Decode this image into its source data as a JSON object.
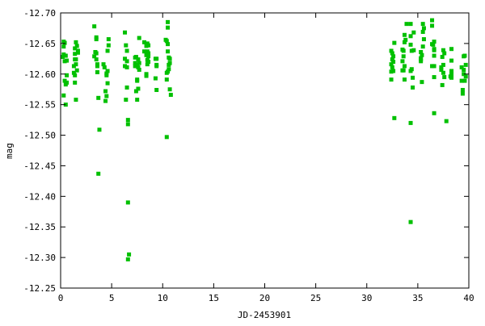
{
  "chart_data": {
    "type": "scatter",
    "title": "",
    "xlabel": "JD-2453901",
    "ylabel": "mag",
    "xlim": [
      0,
      40
    ],
    "ylim": [
      -12.7,
      -12.25
    ],
    "y_inverted_top_value": -12.7,
    "x_ticks": [
      "0",
      "5",
      "10",
      "15",
      "20",
      "25",
      "30",
      "35",
      "40"
    ],
    "y_ticks": [
      "-12.70",
      "-12.65",
      "-12.60",
      "-12.55",
      "-12.50",
      "-12.45",
      "-12.40",
      "-12.35",
      "-12.30",
      "-12.25"
    ],
    "grid": false,
    "legend": "none",
    "marker": "square",
    "color": "#00c000",
    "series": [
      {
        "points": [
          [
            0.3,
            -12.653
          ],
          [
            0.4,
            -12.651
          ],
          [
            0.3,
            -12.645
          ],
          [
            0.3,
            -12.632
          ],
          [
            0.5,
            -12.63
          ],
          [
            0.2,
            -12.628
          ],
          [
            0.6,
            -12.622
          ],
          [
            0.4,
            -12.621
          ],
          [
            0.6,
            -12.598
          ],
          [
            0.4,
            -12.589
          ],
          [
            0.6,
            -12.586
          ],
          [
            0.5,
            -12.583
          ],
          [
            0.3,
            -12.565
          ],
          [
            0.5,
            -12.55
          ],
          [
            1.5,
            -12.652
          ],
          [
            1.6,
            -12.646
          ],
          [
            1.4,
            -12.642
          ],
          [
            1.7,
            -12.638
          ],
          [
            1.7,
            -12.635
          ],
          [
            1.4,
            -12.633
          ],
          [
            1.5,
            -12.624
          ],
          [
            1.4,
            -12.624
          ],
          [
            1.5,
            -12.616
          ],
          [
            1.3,
            -12.613
          ],
          [
            1.6,
            -12.606
          ],
          [
            1.3,
            -12.602
          ],
          [
            1.4,
            -12.598
          ],
          [
            1.4,
            -12.586
          ],
          [
            1.5,
            -12.558
          ],
          [
            3.3,
            -12.678
          ],
          [
            3.5,
            -12.66
          ],
          [
            3.5,
            -12.657
          ],
          [
            3.4,
            -12.636
          ],
          [
            3.5,
            -12.634
          ],
          [
            3.3,
            -12.629
          ],
          [
            3.5,
            -12.624
          ],
          [
            3.6,
            -12.616
          ],
          [
            3.6,
            -12.613
          ],
          [
            3.6,
            -12.603
          ],
          [
            3.7,
            -12.561
          ],
          [
            3.8,
            -12.509
          ],
          [
            3.7,
            -12.437
          ],
          [
            4.7,
            -12.657
          ],
          [
            4.7,
            -12.647
          ],
          [
            4.6,
            -12.638
          ],
          [
            4.2,
            -12.616
          ],
          [
            4.3,
            -12.611
          ],
          [
            4.6,
            -12.605
          ],
          [
            4.5,
            -12.601
          ],
          [
            4.5,
            -12.598
          ],
          [
            4.6,
            -12.585
          ],
          [
            4.4,
            -12.572
          ],
          [
            4.5,
            -12.564
          ],
          [
            4.4,
            -12.556
          ],
          [
            6.3,
            -12.668
          ],
          [
            6.4,
            -12.647
          ],
          [
            6.5,
            -12.638
          ],
          [
            6.3,
            -12.625
          ],
          [
            6.5,
            -12.621
          ],
          [
            6.3,
            -12.613
          ],
          [
            6.5,
            -12.611
          ],
          [
            6.5,
            -12.578
          ],
          [
            6.4,
            -12.558
          ],
          [
            6.6,
            -12.525
          ],
          [
            6.6,
            -12.518
          ],
          [
            6.6,
            -12.39
          ],
          [
            6.7,
            -12.305
          ],
          [
            6.6,
            -12.297
          ],
          [
            7.7,
            -12.659
          ],
          [
            7.3,
            -12.627
          ],
          [
            7.4,
            -12.628
          ],
          [
            7.6,
            -12.624
          ],
          [
            7.3,
            -12.618
          ],
          [
            7.7,
            -12.618
          ],
          [
            7.5,
            -12.615
          ],
          [
            7.3,
            -12.613
          ],
          [
            7.6,
            -12.611
          ],
          [
            7.7,
            -12.607
          ],
          [
            7.5,
            -12.591
          ],
          [
            7.5,
            -12.589
          ],
          [
            7.6,
            -12.576
          ],
          [
            7.4,
            -12.572
          ],
          [
            7.5,
            -12.558
          ],
          [
            8.2,
            -12.652
          ],
          [
            8.5,
            -12.65
          ],
          [
            8.4,
            -12.646
          ],
          [
            8.6,
            -12.647
          ],
          [
            8.2,
            -12.637
          ],
          [
            8.5,
            -12.637
          ],
          [
            8.4,
            -12.631
          ],
          [
            8.6,
            -12.629
          ],
          [
            8.5,
            -12.623
          ],
          [
            8.6,
            -12.62
          ],
          [
            8.5,
            -12.616
          ],
          [
            8.4,
            -12.6
          ],
          [
            8.4,
            -12.597
          ],
          [
            8.6,
            -12.634
          ],
          [
            9.3,
            -12.625
          ],
          [
            9.4,
            -12.625
          ],
          [
            9.4,
            -12.615
          ],
          [
            9.4,
            -12.613
          ],
          [
            9.3,
            -12.593
          ],
          [
            9.4,
            -12.574
          ],
          [
            10.5,
            -12.685
          ],
          [
            10.5,
            -12.676
          ],
          [
            10.3,
            -12.656
          ],
          [
            10.4,
            -12.654
          ],
          [
            10.5,
            -12.649
          ],
          [
            10.5,
            -12.637
          ],
          [
            10.6,
            -12.627
          ],
          [
            10.7,
            -12.625
          ],
          [
            10.6,
            -12.615
          ],
          [
            10.7,
            -12.618
          ],
          [
            10.6,
            -12.608
          ],
          [
            10.4,
            -12.602
          ],
          [
            10.5,
            -12.604
          ],
          [
            10.4,
            -12.591
          ],
          [
            10.7,
            -12.575
          ],
          [
            10.8,
            -12.566
          ],
          [
            10.4,
            -12.497
          ],
          [
            32.4,
            -12.591
          ],
          [
            32.4,
            -12.638
          ],
          [
            32.5,
            -12.634
          ],
          [
            32.6,
            -12.629
          ],
          [
            32.5,
            -12.624
          ],
          [
            32.6,
            -12.62
          ],
          [
            32.4,
            -12.616
          ],
          [
            32.5,
            -12.611
          ],
          [
            32.6,
            -12.605
          ],
          [
            32.4,
            -12.604
          ],
          [
            32.7,
            -12.651
          ],
          [
            32.7,
            -12.528
          ],
          [
            33.5,
            -12.64
          ],
          [
            33.6,
            -12.638
          ],
          [
            33.7,
            -12.652
          ],
          [
            33.8,
            -12.656
          ],
          [
            33.7,
            -12.664
          ],
          [
            33.6,
            -12.629
          ],
          [
            33.5,
            -12.621
          ],
          [
            33.7,
            -12.613
          ],
          [
            33.6,
            -12.606
          ],
          [
            33.5,
            -12.606
          ],
          [
            33.7,
            -12.591
          ],
          [
            33.9,
            -12.682
          ],
          [
            34.3,
            -12.682
          ],
          [
            34.6,
            -12.668
          ],
          [
            34.3,
            -12.662
          ],
          [
            34.3,
            -12.648
          ],
          [
            34.4,
            -12.638
          ],
          [
            34.6,
            -12.639
          ],
          [
            34.4,
            -12.608
          ],
          [
            34.3,
            -12.605
          ],
          [
            34.5,
            -12.594
          ],
          [
            34.5,
            -12.578
          ],
          [
            34.3,
            -12.52
          ],
          [
            34.3,
            -12.358
          ],
          [
            35.5,
            -12.682
          ],
          [
            35.6,
            -12.675
          ],
          [
            35.5,
            -12.669
          ],
          [
            35.6,
            -12.657
          ],
          [
            35.5,
            -12.645
          ],
          [
            35.3,
            -12.636
          ],
          [
            35.4,
            -12.631
          ],
          [
            35.3,
            -12.626
          ],
          [
            35.3,
            -12.624
          ],
          [
            35.3,
            -12.621
          ],
          [
            35.4,
            -12.587
          ],
          [
            36.4,
            -12.688
          ],
          [
            36.4,
            -12.679
          ],
          [
            36.4,
            -12.649
          ],
          [
            36.5,
            -12.648
          ],
          [
            36.6,
            -12.653
          ],
          [
            36.6,
            -12.641
          ],
          [
            36.6,
            -12.639
          ],
          [
            36.6,
            -12.63
          ],
          [
            36.4,
            -12.613
          ],
          [
            36.6,
            -12.613
          ],
          [
            36.6,
            -12.595
          ],
          [
            36.6,
            -12.536
          ],
          [
            37.5,
            -12.639
          ],
          [
            37.6,
            -12.634
          ],
          [
            37.4,
            -12.628
          ],
          [
            37.5,
            -12.615
          ],
          [
            37.3,
            -12.611
          ],
          [
            37.3,
            -12.607
          ],
          [
            37.5,
            -12.602
          ],
          [
            37.6,
            -12.595
          ],
          [
            37.4,
            -12.582
          ],
          [
            37.8,
            -12.523
          ],
          [
            38.3,
            -12.641
          ],
          [
            38.3,
            -12.622
          ],
          [
            38.3,
            -12.605
          ],
          [
            38.3,
            -12.6
          ],
          [
            38.2,
            -12.596
          ],
          [
            38.3,
            -12.594
          ],
          [
            39.5,
            -12.629
          ],
          [
            39.6,
            -12.63
          ],
          [
            39.3,
            -12.611
          ],
          [
            39.7,
            -12.615
          ],
          [
            39.5,
            -12.607
          ],
          [
            39.5,
            -12.6
          ],
          [
            39.7,
            -12.596
          ],
          [
            39.3,
            -12.589
          ],
          [
            39.6,
            -12.589
          ],
          [
            39.4,
            -12.574
          ],
          [
            39.4,
            -12.568
          ]
        ]
      }
    ]
  }
}
